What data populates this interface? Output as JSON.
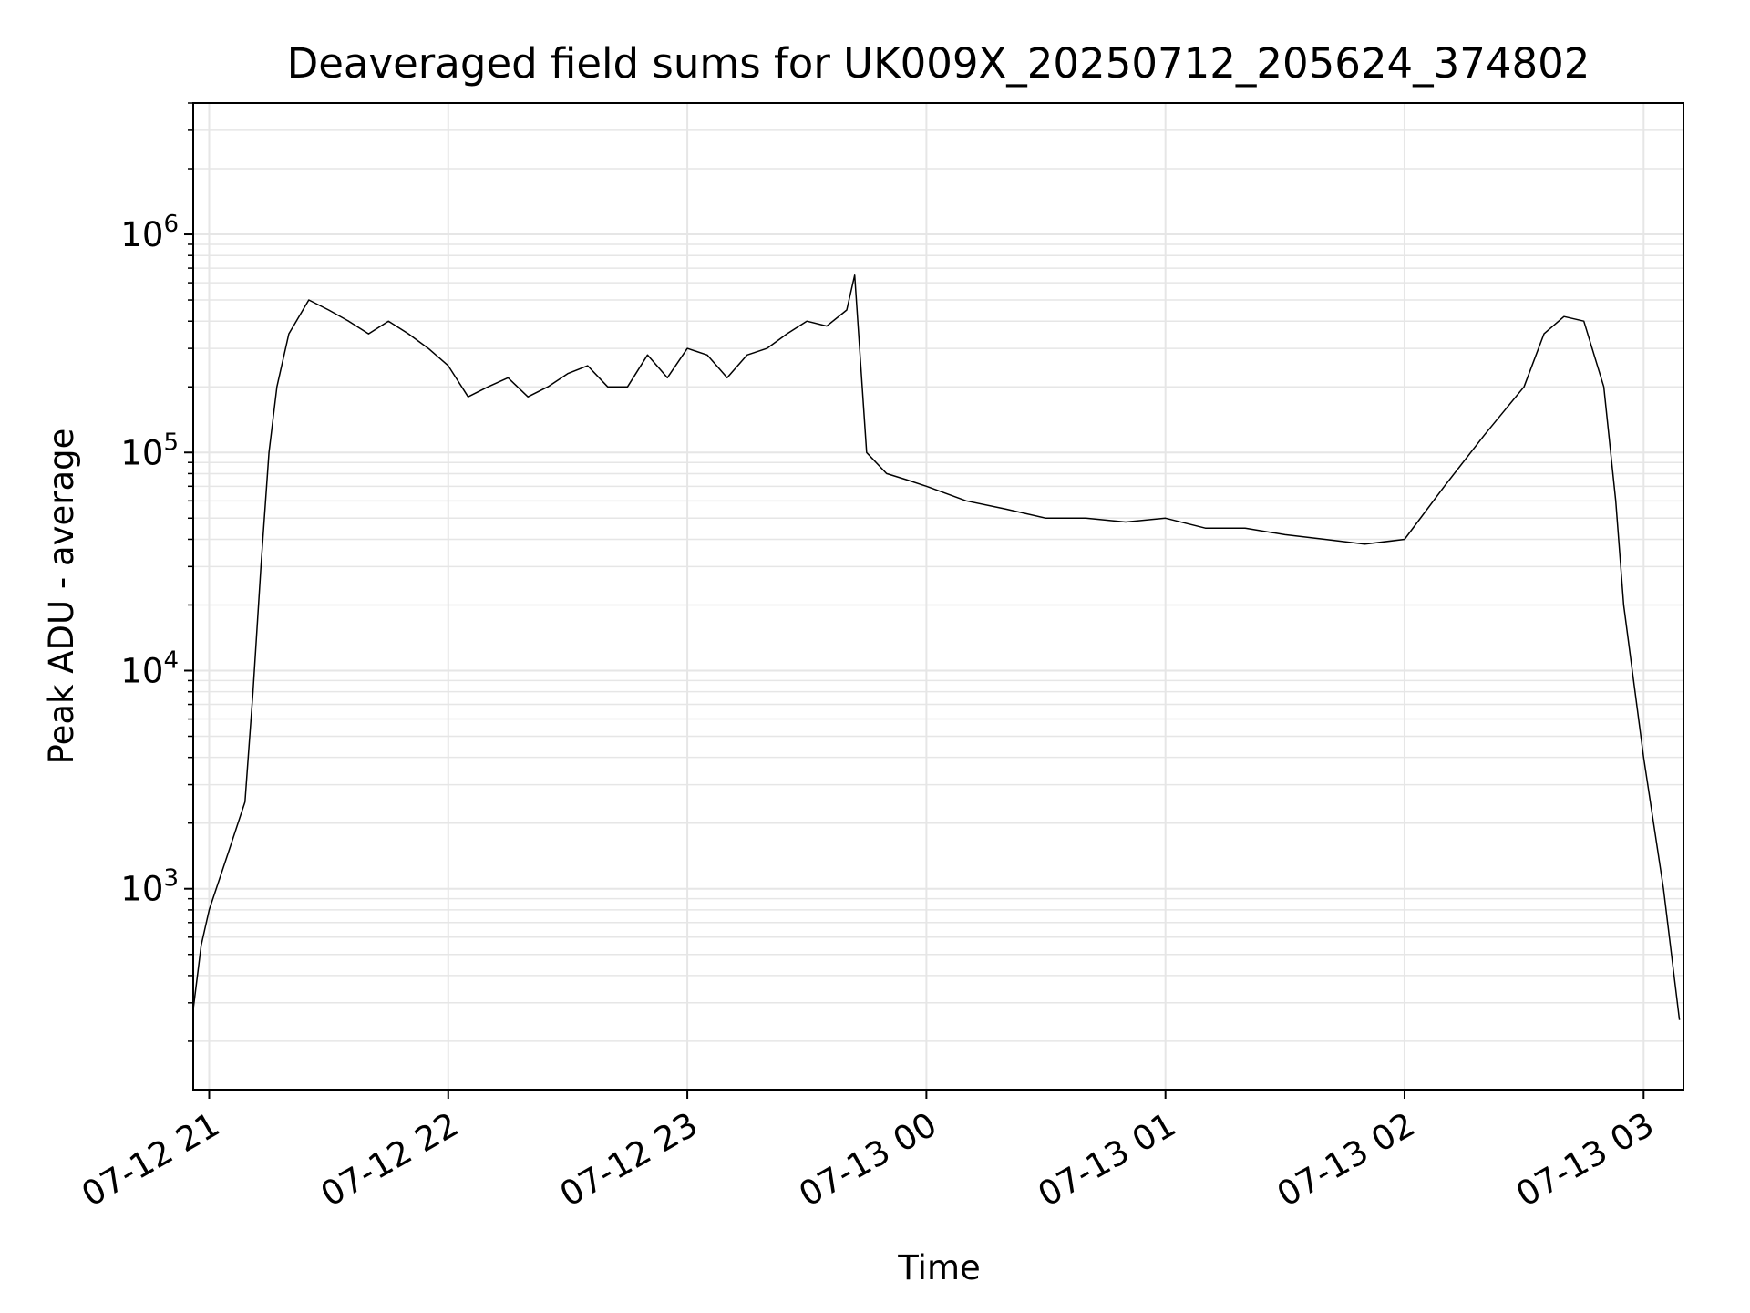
{
  "chart_data": {
    "type": "line",
    "title": "Deaveraged field sums for UK009X_20250712_205624_374802",
    "xlabel": "Time",
    "ylabel": "Peak ADU - average",
    "yscale": "log",
    "ylim": [
      120,
      4000000
    ],
    "xlim": [
      "2025-07-12 20:56",
      "2025-07-13 03:10"
    ],
    "grid": true,
    "x_ticks": [
      {
        "value": "2025-07-12 21:00",
        "label": "07-12 21"
      },
      {
        "value": "2025-07-12 22:00",
        "label": "07-12 22"
      },
      {
        "value": "2025-07-12 23:00",
        "label": "07-12 23"
      },
      {
        "value": "2025-07-13 00:00",
        "label": "07-13 00"
      },
      {
        "value": "2025-07-13 01:00",
        "label": "07-13 01"
      },
      {
        "value": "2025-07-13 02:00",
        "label": "07-13 02"
      },
      {
        "value": "2025-07-13 03:00",
        "label": "07-13 03"
      }
    ],
    "y_ticks": [
      {
        "value": 1000,
        "base": "10",
        "exp": "3"
      },
      {
        "value": 10000,
        "base": "10",
        "exp": "4"
      },
      {
        "value": 100000,
        "base": "10",
        "exp": "5"
      },
      {
        "value": 1000000,
        "base": "10",
        "exp": "6"
      }
    ],
    "series": [
      {
        "color": "#000000",
        "x": [
          "2025-07-12 20:56",
          "2025-07-12 20:58",
          "2025-07-12 21:00",
          "2025-07-12 21:05",
          "2025-07-12 21:09",
          "2025-07-12 21:10",
          "2025-07-12 21:11",
          "2025-07-12 21:13",
          "2025-07-12 21:15",
          "2025-07-12 21:17",
          "2025-07-12 21:20",
          "2025-07-12 21:25",
          "2025-07-12 21:30",
          "2025-07-12 21:35",
          "2025-07-12 21:40",
          "2025-07-12 21:45",
          "2025-07-12 21:50",
          "2025-07-12 21:55",
          "2025-07-12 22:00",
          "2025-07-12 22:05",
          "2025-07-12 22:10",
          "2025-07-12 22:15",
          "2025-07-12 22:20",
          "2025-07-12 22:25",
          "2025-07-12 22:30",
          "2025-07-12 22:35",
          "2025-07-12 22:40",
          "2025-07-12 22:45",
          "2025-07-12 22:50",
          "2025-07-12 22:55",
          "2025-07-12 23:00",
          "2025-07-12 23:05",
          "2025-07-12 23:10",
          "2025-07-12 23:15",
          "2025-07-12 23:20",
          "2025-07-12 23:25",
          "2025-07-12 23:30",
          "2025-07-12 23:35",
          "2025-07-12 23:40",
          "2025-07-12 23:42",
          "2025-07-12 23:45",
          "2025-07-12 23:50",
          "2025-07-12 23:55",
          "2025-07-13 00:00",
          "2025-07-13 00:10",
          "2025-07-13 00:20",
          "2025-07-13 00:30",
          "2025-07-13 00:40",
          "2025-07-13 00:50",
          "2025-07-13 01:00",
          "2025-07-13 01:10",
          "2025-07-13 01:20",
          "2025-07-13 01:30",
          "2025-07-13 01:40",
          "2025-07-13 01:50",
          "2025-07-13 02:00",
          "2025-07-13 02:10",
          "2025-07-13 02:20",
          "2025-07-13 02:30",
          "2025-07-13 02:35",
          "2025-07-13 02:40",
          "2025-07-13 02:45",
          "2025-07-13 02:50",
          "2025-07-13 02:53",
          "2025-07-13 02:55",
          "2025-07-13 03:00",
          "2025-07-13 03:05",
          "2025-07-13 03:09"
        ],
        "y": [
          280,
          550,
          800,
          1500,
          2500,
          4500,
          8000,
          30000,
          100000,
          200000,
          350000,
          500000,
          450000,
          400000,
          350000,
          400000,
          350000,
          300000,
          250000,
          180000,
          200000,
          220000,
          180000,
          200000,
          230000,
          250000,
          200000,
          200000,
          280000,
          220000,
          300000,
          280000,
          220000,
          280000,
          300000,
          350000,
          400000,
          380000,
          450000,
          650000,
          100000,
          80000,
          75000,
          70000,
          60000,
          55000,
          50000,
          50000,
          48000,
          50000,
          45000,
          45000,
          42000,
          40000,
          38000,
          40000,
          70000,
          120000,
          200000,
          350000,
          420000,
          400000,
          200000,
          60000,
          20000,
          4000,
          1000,
          250
        ]
      }
    ]
  }
}
